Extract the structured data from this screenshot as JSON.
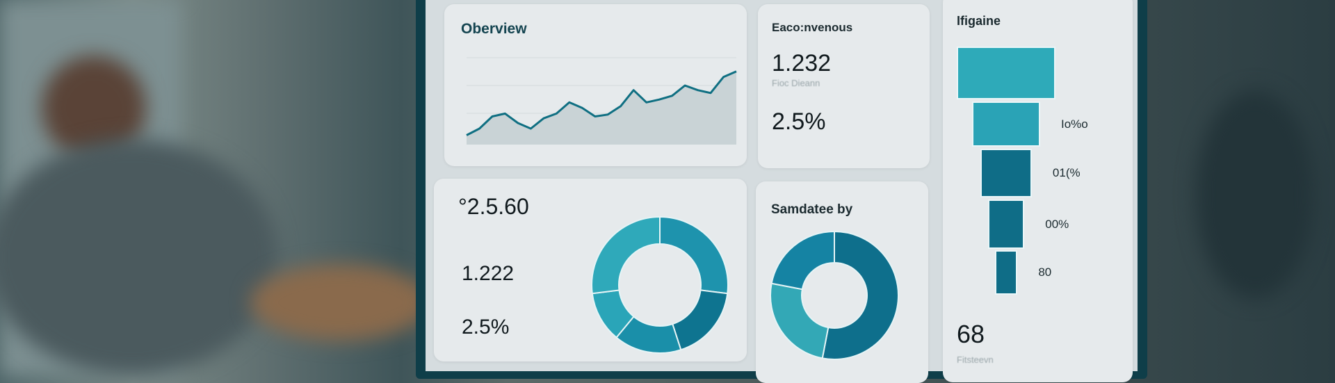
{
  "colors": {
    "accent": "#0e7490",
    "accent_light": "#2fa9ba",
    "line": "#0f6f82"
  },
  "overview": {
    "title": "Oberview",
    "series": [
      10,
      17,
      30,
      33,
      23,
      17,
      28,
      33,
      45,
      39,
      30,
      32,
      41,
      58,
      45,
      48,
      52,
      63,
      58,
      55,
      72,
      78
    ]
  },
  "kpi": {
    "title": "Eaco:nvenous",
    "value": "1.232",
    "caption": "Fioc Dieann",
    "percent": "2.5%"
  },
  "stats": {
    "value1": "°2.5.60",
    "value2": "1.222",
    "value3": "2.5%",
    "donut": [
      {
        "value": 27,
        "color": "#1e93ad"
      },
      {
        "value": 18,
        "color": "#0e7490"
      },
      {
        "value": 16,
        "color": "#1a8fa9"
      },
      {
        "value": 12,
        "color": "#2aa5b8"
      },
      {
        "value": 27,
        "color": "#2fa9ba"
      }
    ]
  },
  "samdatee": {
    "title": "Samdatee by",
    "donut": [
      {
        "value": 53,
        "color": "#0e6f8c"
      },
      {
        "value": 25,
        "color": "#33a8b6"
      },
      {
        "value": 22,
        "color": "#1583a3"
      }
    ]
  },
  "funnel": {
    "title": "Ifigaine",
    "stages": [
      {
        "value": 100,
        "label": "",
        "color": "#2eaab9"
      },
      {
        "value": 69,
        "label": "Io%o",
        "color": "#2aa3b6"
      },
      {
        "value": 52,
        "label": "01(%",
        "color": "#0f6d87"
      },
      {
        "value": 37,
        "label": "00%",
        "color": "#0f6d87"
      },
      {
        "value": 23,
        "label": "80",
        "color": "#0f6d87"
      }
    ],
    "total": "68",
    "total_caption": "Fitsteevn"
  }
}
